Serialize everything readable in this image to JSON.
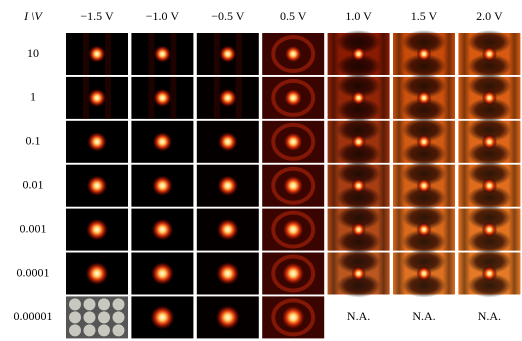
{
  "header": {
    "corner": "I \\V",
    "columns": [
      "−1.5 V",
      "−1.0 V",
      "−0.5 V",
      "0.5 V",
      "1.0 V",
      "1.5 V",
      "2.0 V"
    ]
  },
  "rows": [
    "10",
    "1",
    "0.1",
    "0.01",
    "0.001",
    "0.0001",
    "0.00001"
  ],
  "unavailable": [
    "N.A.",
    "N.A.",
    "N.A."
  ]
}
